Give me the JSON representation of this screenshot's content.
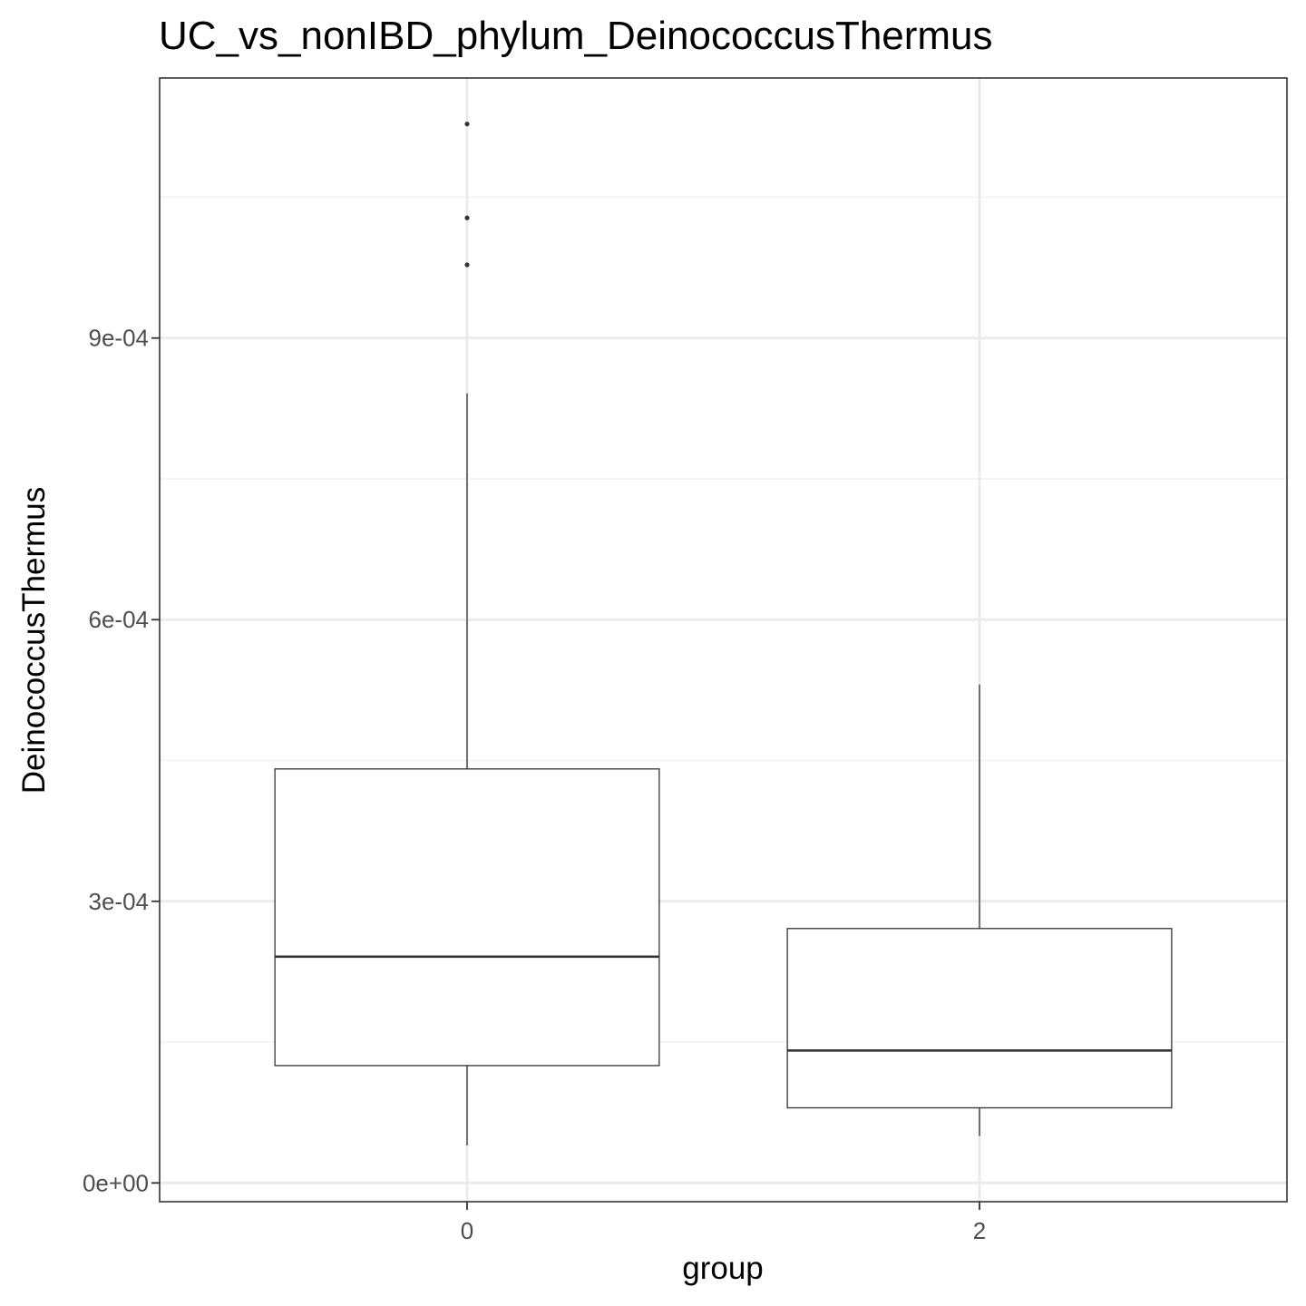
{
  "chart_data": {
    "type": "box",
    "title": "UC_vs_nonIBD_phylum_DeinococcusThermus",
    "xlabel": "group",
    "ylabel": "DeinococcusThermus",
    "categories": [
      "0",
      "2"
    ],
    "ylim": [
      -2e-05,
      0.001177
    ],
    "y_ticks": [
      0,
      0.0003,
      0.0006,
      0.0009
    ],
    "y_tick_labels": [
      "0e+00",
      "3e-04",
      "6e-04",
      "9e-04"
    ],
    "y_minor_ticks": [
      0.00015,
      0.00045,
      0.00075,
      0.00105
    ],
    "grid": true,
    "boxes": [
      {
        "group": "0",
        "whisker_low": 4e-05,
        "q1": 0.000125,
        "median": 0.000241,
        "q3": 0.000441,
        "whisker_high": 0.000841,
        "outliers": [
          0.000978,
          0.001028,
          0.001128
        ]
      },
      {
        "group": "2",
        "whisker_low": 5e-05,
        "q1": 8e-05,
        "median": 0.000141,
        "q3": 0.000271,
        "whisker_high": 0.000531,
        "outliers": []
      }
    ],
    "colors": {
      "box_fill": "#ffffff",
      "box_stroke": "#333333",
      "grid_major": "#ebebeb",
      "grid_minor": "#f2f2f2",
      "panel_border": "#333333",
      "tick_label": "#4d4d4d",
      "text": "#000000"
    }
  }
}
